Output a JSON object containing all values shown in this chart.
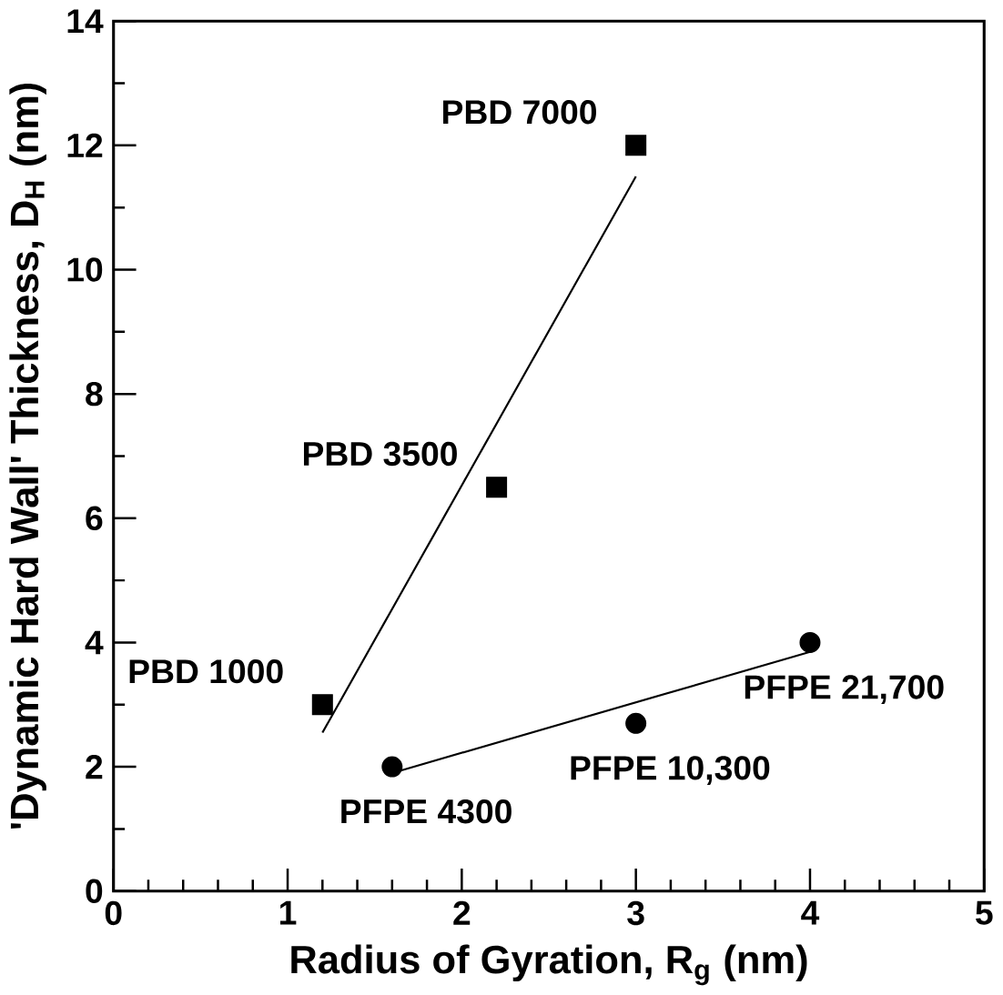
{
  "chart_data": {
    "type": "scatter",
    "xlabel": "Radius of Gyration, R$_{g}$ (nm)",
    "ylabel": "'Dynamic Hard Wall' Thickness, D$_{H}$ (nm)",
    "xlim": [
      0,
      5
    ],
    "ylim": [
      0,
      14
    ],
    "xticks": [
      0,
      1,
      2,
      3,
      4,
      5
    ],
    "yticks": [
      0,
      2,
      4,
      6,
      8,
      10,
      12,
      14
    ],
    "grid": false,
    "series": [
      {
        "marker": "square",
        "color": "#000000",
        "x": [
          1.2,
          2.2,
          3
        ],
        "values": [
          3,
          6.5,
          12
        ]
      },
      {
        "marker": "circle",
        "color": "#000000",
        "x": [
          1.6,
          3,
          4
        ],
        "values": [
          2,
          2.7,
          4
        ]
      },
      {
        "type": "line",
        "marker": "none",
        "color": "#000000",
        "x": [
          1.2,
          3
        ],
        "values": [
          2.55,
          11.5
        ]
      },
      {
        "type": "line",
        "marker": "none",
        "color": "#000000",
        "x": [
          1.6,
          4
        ],
        "values": [
          1.9,
          3.85
        ]
      }
    ],
    "annotations": [
      {
        "text": "PBD 7000",
        "x": 3,
        "y": 12
      },
      {
        "text": "PBD 3500",
        "x": 2.2,
        "y": 6.5
      },
      {
        "text": "PBD 1000",
        "x": 1.2,
        "y": 3
      },
      {
        "text": "PFPE 4300",
        "x": 1.6,
        "y": 2
      },
      {
        "text": "PFPE 10,300",
        "x": 3,
        "y": 2.7
      },
      {
        "text": "PFPE 21,700",
        "x": 4,
        "y": 4
      }
    ]
  }
}
